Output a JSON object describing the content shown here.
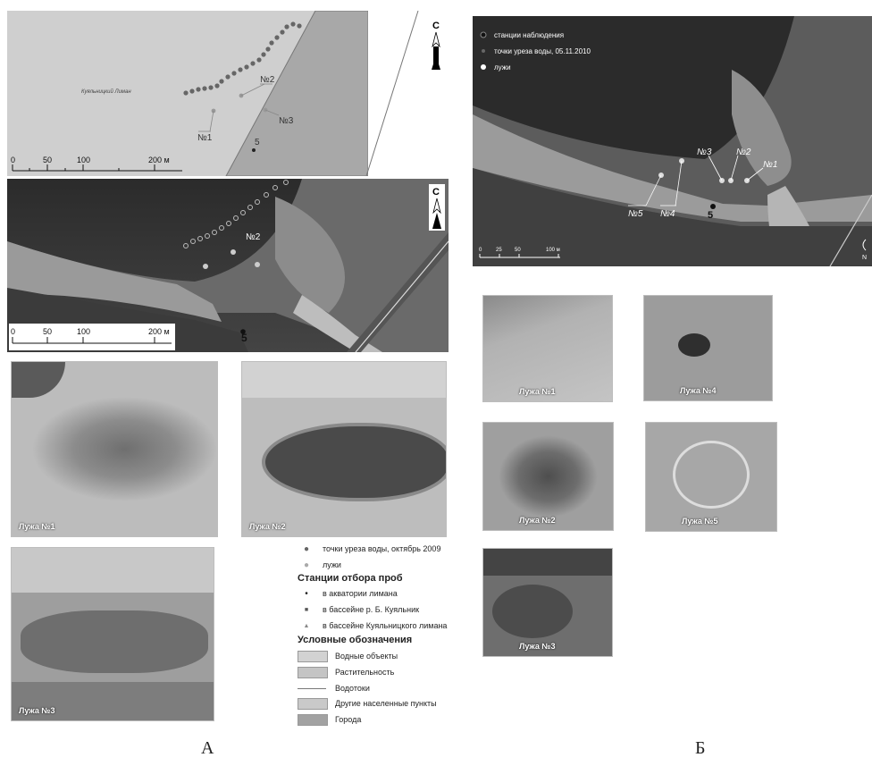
{
  "map_a_top": {
    "place_label": "Куяльницкий Лиман",
    "north": "С",
    "stations": [
      "№1",
      "№2",
      "№3"
    ],
    "point5": "5",
    "scale": [
      "0",
      "50",
      "100",
      "200 м"
    ]
  },
  "map_a_sat": {
    "north": "С",
    "puddle_label": "№2",
    "point5": "5",
    "scale": [
      "0",
      "50",
      "100",
      "200 м"
    ]
  },
  "photos_a": [
    "Лужа №1",
    "Лужа №2",
    "Лужа №3"
  ],
  "legend": {
    "points": [
      {
        "symbol": "●",
        "label": "точки уреза воды, октябрь 2009",
        "color": "#666666"
      },
      {
        "symbol": "●",
        "label": "лужи",
        "color": "#aaaaaa"
      }
    ],
    "stations_title": "Станции отбора проб",
    "stations": [
      {
        "symbol": "•",
        "label": "в акватории лимана"
      },
      {
        "symbol": "■",
        "label": "в бассейне р. Б. Куяльник"
      },
      {
        "symbol": "▲",
        "label": "в бассейне Куяльницкого лимана"
      }
    ],
    "conventions_title": "Условные обозначения",
    "conventions": [
      {
        "label": "Водные объекты",
        "color": "#d2d2d2"
      },
      {
        "label": "Растительность",
        "color": "#c4c4c4"
      },
      {
        "label": "Водотоки",
        "color": "line"
      },
      {
        "label": "Другие населенные пункты",
        "color": "#c9c9c9"
      },
      {
        "label": "Города",
        "color": "#a2a2a2"
      }
    ]
  },
  "map_b": {
    "legend": [
      "станции наблюдения",
      "точки уреза воды, 05.11.2010",
      "лужи"
    ],
    "stations": [
      "№5",
      "№4",
      "№3",
      "№2",
      "№1"
    ],
    "point5": "5",
    "scale": [
      "0",
      "25",
      "50",
      "100 м"
    ],
    "north": "N"
  },
  "photos_b": [
    "Лужа №1",
    "Лужа №4",
    "Лужа №2",
    "Лужа №5",
    "Лужа №3"
  ],
  "panel_labels": {
    "a": "А",
    "b": "Б"
  }
}
